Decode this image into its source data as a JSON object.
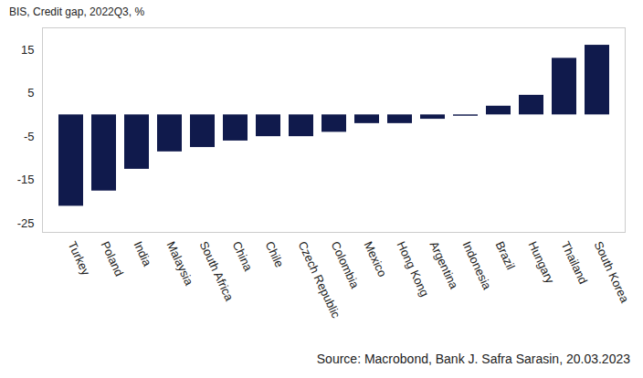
{
  "chart_data": {
    "type": "bar",
    "title": "BIS, Credit gap, 2022Q3, %",
    "caption": "Source: Macrobond, Bank J. Safra Sarasin, 20.03.2023",
    "categories": [
      "Turkey",
      "Poland",
      "India",
      "Malaysia",
      "South Africa",
      "China",
      "Chile",
      "Czech Republic",
      "Colombia",
      "Mexico",
      "Hong Kong",
      "Argentina",
      "Indonesia",
      "Brazil",
      "Hungary",
      "Thailand",
      "South Korea"
    ],
    "values": [
      -21,
      -17.5,
      -12.5,
      -8.5,
      -7.5,
      -6,
      -5,
      -5,
      -4,
      -2,
      -2,
      -1,
      -0.3,
      2,
      4.5,
      13,
      16
    ],
    "color": "#101a4c",
    "ylim": [
      -27,
      20
    ],
    "yticks": [
      -25,
      -15,
      -5,
      5,
      15
    ],
    "grid": false
  }
}
